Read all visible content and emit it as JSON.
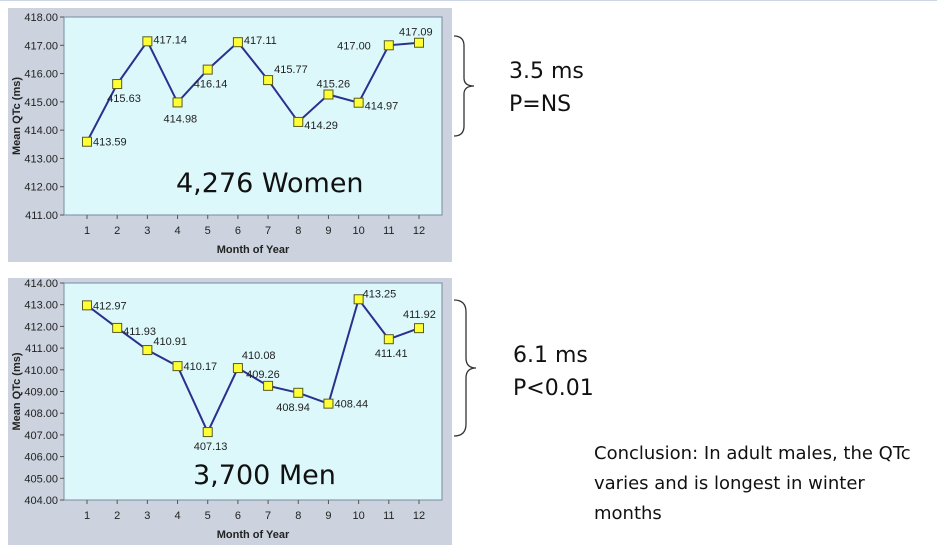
{
  "chart_data": [
    {
      "type": "line",
      "x": [
        1,
        2,
        3,
        4,
        5,
        6,
        7,
        8,
        9,
        10,
        11,
        12
      ],
      "xlabel": "Month of Year",
      "ylabel": "Mean QTc (ms)",
      "ylim": [
        411.0,
        418.0
      ],
      "yticks": [
        "418.00",
        "417.00",
        "416.00",
        "415.00",
        "414.00",
        "413.00",
        "412.00",
        "411.00"
      ],
      "series": [
        {
          "values": [
            413.59,
            415.63,
            417.14,
            414.98,
            416.14,
            417.11,
            415.77,
            414.29,
            415.26,
            414.97,
            417.0,
            417.09
          ]
        }
      ],
      "data_labels": [
        "413.59",
        "415.63",
        "417.14",
        "414.98",
        "416.14",
        "417.11",
        "415.77",
        "414.29",
        "415.26",
        "414.97",
        "417.00",
        "417.09"
      ],
      "annotation": "4,276 Women",
      "grid": false,
      "colors": {
        "line": "#2b2f8e",
        "marker": "#ffff33",
        "plot_bg": "#dcf8fb",
        "frame_bg": "#ccd3df"
      }
    },
    {
      "type": "line",
      "x": [
        1,
        2,
        3,
        4,
        5,
        6,
        7,
        8,
        9,
        10,
        11,
        12
      ],
      "xlabel": "Month of Year",
      "ylabel": "Mean QTc (ms)",
      "ylim": [
        404.0,
        414.0
      ],
      "yticks": [
        "414.00",
        "413.00",
        "412.00",
        "411.00",
        "410.00",
        "409.00",
        "408.00",
        "407.00",
        "406.00",
        "405.00",
        "404.00"
      ],
      "series": [
        {
          "values": [
            412.97,
            411.93,
            410.91,
            410.17,
            407.13,
            410.08,
            409.26,
            408.94,
            408.44,
            413.25,
            411.41,
            411.92
          ]
        }
      ],
      "data_labels": [
        "412.97",
        "411.93",
        "410.91",
        "410.17",
        "407.13",
        "410.08",
        "409.26",
        "408.94",
        "408.44",
        "413.25",
        "411.41",
        "411.92"
      ],
      "annotation": "3,700 Men",
      "grid": false,
      "colors": {
        "line": "#2b2f8e",
        "marker": "#ffff33",
        "plot_bg": "#dcf8fb",
        "frame_bg": "#ccd3df"
      }
    }
  ],
  "women_stats": {
    "diff": "3.5 ms",
    "p": "P=NS"
  },
  "men_stats": {
    "diff": "6.1 ms",
    "p": "P<0.01"
  },
  "conclusion": "Conclusion: In adult males, the QTc varies and is longest in winter months"
}
